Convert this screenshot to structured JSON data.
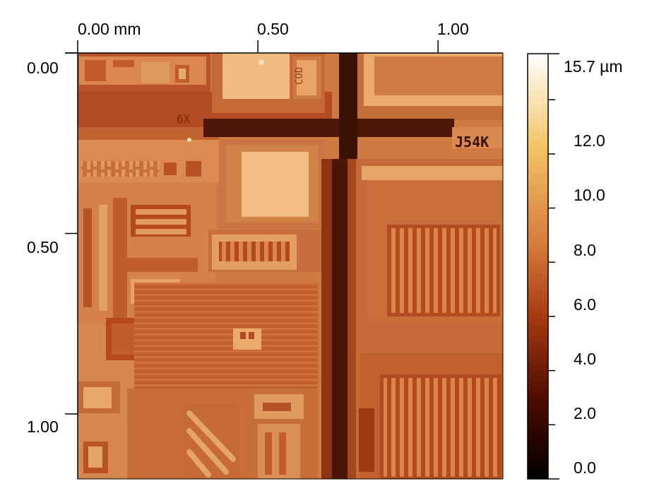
{
  "x_axis": {
    "labels": [
      "0.00 mm",
      "0.50",
      "1.00"
    ],
    "values": [
      0.0,
      0.5,
      1.0
    ],
    "range": [
      0,
      1.18
    ]
  },
  "y_axis": {
    "labels": [
      "0.00",
      "0.50",
      "1.00"
    ],
    "values": [
      0.0,
      0.5,
      1.0
    ],
    "range": [
      0,
      1.18
    ]
  },
  "colorbar": {
    "labels": [
      "15.7 µm",
      "12.0",
      "10.0",
      "8.0",
      "6.0",
      "4.0",
      "2.0",
      "0.0"
    ],
    "values": [
      15.7,
      12.0,
      10.0,
      8.0,
      6.0,
      4.0,
      2.0,
      0.0
    ],
    "range": [
      0,
      15.7
    ],
    "colors": [
      "#000000",
      "#4a0a00",
      "#a63a10",
      "#d67a3c",
      "#f3c363",
      "#ffffff"
    ]
  },
  "image_text": {
    "left_mark": "6X",
    "right_mark": "J54K",
    "top_code": "COD"
  }
}
